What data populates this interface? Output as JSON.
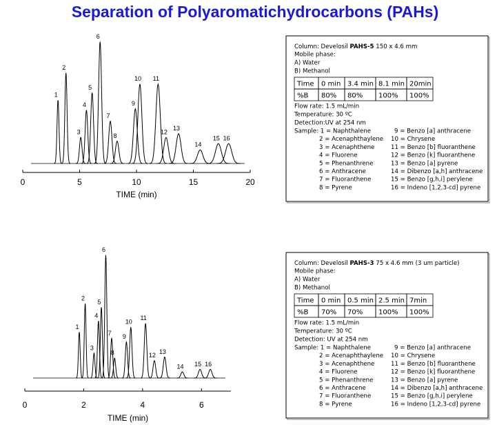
{
  "title": "Separation of Polyaromatichydrocarbons (PAHs)",
  "chart_data": [
    {
      "type": "chromatogram",
      "xlabel": "TIME (min)",
      "xlim": [
        0,
        20
      ],
      "xticks": [
        0,
        5,
        10,
        15,
        20
      ],
      "ylim": [
        0,
        100
      ],
      "color": "#000000",
      "x": [
        3.1,
        3.8,
        5.1,
        5.6,
        6.1,
        6.8,
        7.7,
        8.3,
        9.9,
        10.3,
        11.9,
        12.6,
        13.7,
        15.6,
        17.2,
        18.1
      ],
      "values": [
        51,
        73,
        21,
        43,
        57,
        98,
        34,
        18,
        44,
        64,
        64,
        21,
        24,
        11,
        16,
        16
      ],
      "labels": [
        "1",
        "2",
        "3",
        "4",
        "5",
        "6",
        "7",
        "8",
        "9",
        "10",
        "11",
        "12",
        "13",
        "14",
        "15",
        "16"
      ]
    },
    {
      "type": "chromatogram",
      "xlabel": "TIME (min)",
      "xlim": [
        0,
        7
      ],
      "xticks": [
        0,
        2,
        4,
        6
      ],
      "ylim": [
        0,
        100
      ],
      "color": "#000000",
      "x": [
        1.85,
        2.05,
        2.35,
        2.5,
        2.6,
        2.75,
        2.95,
        3.05,
        3.45,
        3.6,
        4.1,
        4.4,
        4.75,
        5.35,
        5.95,
        6.3
      ],
      "values": [
        37,
        60,
        20,
        46,
        57,
        99,
        32,
        16,
        29,
        41,
        44,
        14,
        17,
        5,
        7,
        7
      ],
      "labels": [
        "1",
        "2",
        "3",
        "4",
        "5",
        "6",
        "7",
        "8",
        "9",
        "10",
        "11",
        "12",
        "13",
        "14",
        "15",
        "16"
      ]
    }
  ],
  "info_boxes": [
    {
      "column": [
        "Column: Develosil ",
        "PAHS-5",
        " 150 x 4.6 mm"
      ],
      "mobile_phase": [
        "Mobile phase:",
        "A) Water",
        "B) Methanol"
      ],
      "table": [
        [
          "Time",
          "0 min",
          "3.4 min",
          "8.1 min",
          "20min"
        ],
        [
          "%B",
          "80%",
          "80%",
          "100%",
          "100%"
        ]
      ],
      "conditions": [
        "Flow rate: 1.5 mL/min",
        "Temperature: 30 ºC",
        "Detection:UV at 254 nm"
      ],
      "samples": [
        [
          "Sample: 1 = Naphthalene",
          "9 = Benzo [a] anthracene"
        ],
        [
          "2 = Acenaphthaylene",
          "10 = Chrysene"
        ],
        [
          "3 = Acenaphthene",
          "11 = Benzo [b] fluoranthene"
        ],
        [
          "4 = Fluorene",
          "12 = Benzo [k] fluoranthene"
        ],
        [
          "5 = Phenanthrene",
          "13 = Benzo [a] pyrene"
        ],
        [
          "6 = Anthracene",
          "14 = Dibenzo [a,h] anthracene"
        ],
        [
          "7 = Fluoranthene",
          "15 = Benzo [g,h,i] perylene"
        ],
        [
          "8 = Pyrene",
          "16 = Indeno [1,2,3-cd] pyrene"
        ]
      ]
    },
    {
      "column": [
        "Column: Develosil ",
        "PAHS-3",
        " 75 x 4.6 mm (3 um particle)"
      ],
      "mobile_phase": [
        "Mobile phase:",
        "A) Water",
        "B) Methanol"
      ],
      "table": [
        [
          "Time",
          "0 min",
          "0.5 min",
          "2.5 min",
          "7min"
        ],
        [
          "%B",
          "70%",
          "70%",
          "100%",
          "100%"
        ]
      ],
      "conditions": [
        "Flow rate: 1.5 mL/min",
        "Temperature: 30 ºC",
        "Detection: UV at 254 nm"
      ],
      "samples": [
        [
          "Sample: 1 = Naphthalene",
          "9 = Benzo [a] anthracene"
        ],
        [
          "2 = Acenaphthaylene",
          "10 = Chrysene"
        ],
        [
          "3 = Acenaphthene",
          "11 = Benzo [b] fluoranthene"
        ],
        [
          "4 = Fluorene",
          "12 = Benzo [k] fluoranthene"
        ],
        [
          "5 = Phenanthrene",
          "13 = Benzo [a] pyrene"
        ],
        [
          "6 = Anthracene",
          "14 = Dibenzo [a,h] anthracene"
        ],
        [
          "7 = Fluoranthene",
          "15 = Benzo [g,h,i] perylene"
        ],
        [
          "8 = Pyrene",
          "16 = Indeno [1,2,3-cd] pyrene"
        ]
      ]
    }
  ]
}
